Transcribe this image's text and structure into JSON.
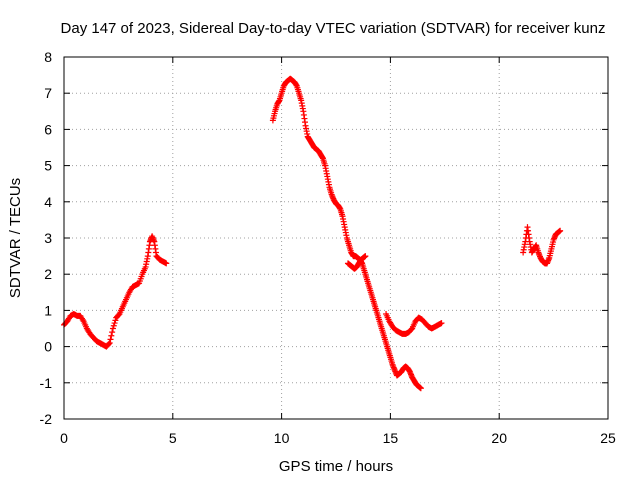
{
  "chart_data": {
    "type": "scatter",
    "title": "Day 147 of 2023, Sidereal Day-to-day VTEC variation (SDTVAR) for receiver kunz",
    "xlabel": "GPS time / hours",
    "ylabel": "SDTVAR / TECUs",
    "xlim": [
      0,
      25
    ],
    "ylim": [
      -2,
      8
    ],
    "xticks": [
      0,
      5,
      10,
      15,
      20,
      25
    ],
    "yticks": [
      -2,
      -1,
      0,
      1,
      2,
      3,
      4,
      5,
      6,
      7,
      8
    ],
    "grid": true,
    "legend": "none",
    "marker": "+",
    "series_color": "#ff0000",
    "series": [
      {
        "x": [
          0.0,
          0.15,
          0.3,
          0.45,
          0.6,
          0.75,
          0.9,
          1.05,
          1.2,
          1.35,
          1.5,
          1.65,
          1.8,
          1.95,
          2.1,
          2.25,
          2.4,
          2.55,
          2.7,
          2.85,
          3.0,
          3.15,
          3.3,
          3.45,
          3.6,
          3.75,
          3.85,
          3.95,
          4.05,
          4.15,
          4.25,
          4.4,
          4.55,
          4.7
        ],
        "y": [
          0.6,
          0.7,
          0.85,
          0.9,
          0.85,
          0.85,
          0.7,
          0.5,
          0.35,
          0.25,
          0.15,
          0.1,
          0.05,
          0.0,
          0.1,
          0.5,
          0.8,
          0.9,
          1.1,
          1.3,
          1.5,
          1.65,
          1.7,
          1.75,
          2.0,
          2.2,
          2.5,
          2.9,
          3.05,
          2.9,
          2.5,
          2.4,
          2.35,
          2.3
        ]
      },
      {
        "x": [
          9.6,
          9.7,
          9.8,
          9.9,
          10.0,
          10.1,
          10.2,
          10.3,
          10.4,
          10.5,
          10.6,
          10.7,
          10.8,
          10.9,
          11.0,
          11.1,
          11.2,
          11.3,
          11.4,
          11.5,
          11.6,
          11.7,
          11.8,
          11.9,
          12.0,
          12.1,
          12.2,
          12.3,
          12.4,
          12.5,
          12.6,
          12.7,
          12.8,
          12.9,
          13.0,
          13.1,
          13.2,
          13.3,
          13.4,
          13.5,
          13.6,
          13.7,
          13.8,
          13.9,
          14.0,
          14.1,
          14.2,
          14.3,
          14.4,
          14.5,
          14.6,
          14.7,
          14.8,
          14.9,
          15.0,
          15.1,
          15.2,
          15.3,
          15.4,
          15.5,
          15.6,
          15.7,
          15.8,
          15.9,
          16.0,
          16.1,
          16.2,
          16.3,
          16.4
        ],
        "y": [
          6.25,
          6.5,
          6.7,
          6.8,
          7.0,
          7.2,
          7.3,
          7.35,
          7.4,
          7.35,
          7.3,
          7.2,
          7.0,
          6.8,
          6.5,
          6.1,
          5.8,
          5.7,
          5.6,
          5.5,
          5.45,
          5.4,
          5.3,
          5.2,
          5.0,
          4.7,
          4.4,
          4.2,
          4.05,
          3.95,
          3.9,
          3.8,
          3.6,
          3.3,
          3.0,
          2.8,
          2.6,
          2.5,
          2.5,
          2.45,
          2.4,
          2.3,
          2.1,
          1.9,
          1.7,
          1.5,
          1.3,
          1.1,
          0.9,
          0.7,
          0.5,
          0.3,
          0.1,
          -0.1,
          -0.3,
          -0.5,
          -0.65,
          -0.8,
          -0.75,
          -0.7,
          -0.6,
          -0.55,
          -0.6,
          -0.7,
          -0.85,
          -0.95,
          -1.05,
          -1.1,
          -1.15
        ]
      },
      {
        "x": [
          13.05,
          13.15,
          13.25,
          13.35,
          13.45,
          13.55,
          13.65,
          13.75,
          13.85
        ],
        "y": [
          2.3,
          2.25,
          2.2,
          2.15,
          2.2,
          2.3,
          2.4,
          2.45,
          2.5
        ]
      },
      {
        "x": [
          14.8,
          14.95,
          15.1,
          15.25,
          15.4,
          15.55,
          15.7,
          15.85,
          16.0,
          16.15,
          16.3,
          16.45,
          16.6,
          16.75,
          16.9,
          17.05,
          17.2,
          17.35
        ],
        "y": [
          0.9,
          0.7,
          0.55,
          0.45,
          0.4,
          0.35,
          0.35,
          0.4,
          0.5,
          0.7,
          0.8,
          0.75,
          0.65,
          0.55,
          0.5,
          0.55,
          0.6,
          0.65
        ]
      },
      {
        "x": [
          21.1,
          21.2,
          21.3,
          21.4,
          21.5,
          21.6,
          21.7,
          21.8,
          21.9,
          22.0,
          22.1,
          22.2,
          22.3,
          22.4,
          22.5,
          22.6,
          22.7,
          22.8
        ],
        "y": [
          2.6,
          2.9,
          3.3,
          2.9,
          2.6,
          2.7,
          2.8,
          2.6,
          2.45,
          2.35,
          2.3,
          2.3,
          2.45,
          2.7,
          2.95,
          3.1,
          3.15,
          3.2
        ]
      }
    ]
  }
}
